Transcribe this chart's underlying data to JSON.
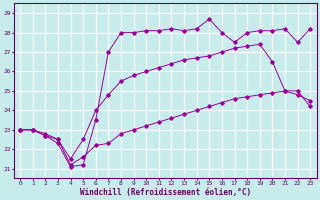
{
  "xlabel": "Windchill (Refroidissement éolien,°C)",
  "bg_color": "#c8ecec",
  "line_color": "#990099",
  "grid_color": "#ffffff",
  "x_ticks": [
    0,
    1,
    2,
    3,
    4,
    5,
    6,
    7,
    8,
    9,
    10,
    11,
    12,
    13,
    14,
    15,
    16,
    17,
    18,
    19,
    20,
    21,
    22,
    23
  ],
  "y_ticks": [
    21,
    22,
    23,
    24,
    25,
    26,
    27,
    28,
    29
  ],
  "xlim": [
    -0.5,
    23.5
  ],
  "ylim": [
    20.5,
    29.5
  ],
  "line1_x": [
    0,
    1,
    2,
    3,
    4,
    5,
    6,
    7,
    8,
    9,
    10,
    11,
    12,
    13,
    14,
    15,
    16,
    17,
    18,
    19,
    20,
    21,
    22,
    23
  ],
  "line1_y": [
    23.0,
    23.0,
    22.7,
    22.5,
    21.2,
    21.6,
    22.2,
    22.3,
    22.8,
    23.0,
    23.2,
    23.4,
    23.6,
    23.8,
    24.0,
    24.2,
    24.4,
    24.6,
    24.7,
    24.8,
    24.9,
    25.0,
    24.8,
    24.5
  ],
  "line2_x": [
    0,
    1,
    2,
    3,
    4,
    5,
    6,
    7,
    8,
    9,
    10,
    11,
    12,
    13,
    14,
    15,
    16,
    17,
    18,
    19,
    20,
    21,
    22,
    23
  ],
  "line2_y": [
    23.0,
    23.0,
    22.8,
    22.5,
    21.5,
    22.5,
    24.0,
    24.8,
    25.5,
    25.8,
    26.0,
    26.2,
    26.4,
    26.6,
    26.7,
    26.8,
    27.0,
    27.2,
    27.3,
    27.4,
    26.5,
    25.0,
    25.0,
    24.2
  ],
  "line3_x": [
    0,
    1,
    2,
    3,
    4,
    5,
    6,
    7,
    8,
    9,
    10,
    11,
    12,
    13,
    14,
    15,
    16,
    17,
    18,
    19,
    20,
    21,
    22,
    23
  ],
  "line3_y": [
    23.0,
    23.0,
    22.7,
    22.3,
    21.1,
    21.2,
    23.5,
    27.0,
    28.0,
    28.0,
    28.1,
    28.1,
    28.2,
    28.1,
    28.2,
    28.7,
    28.0,
    27.5,
    28.0,
    28.1,
    28.1,
    28.2,
    27.5,
    28.2
  ]
}
